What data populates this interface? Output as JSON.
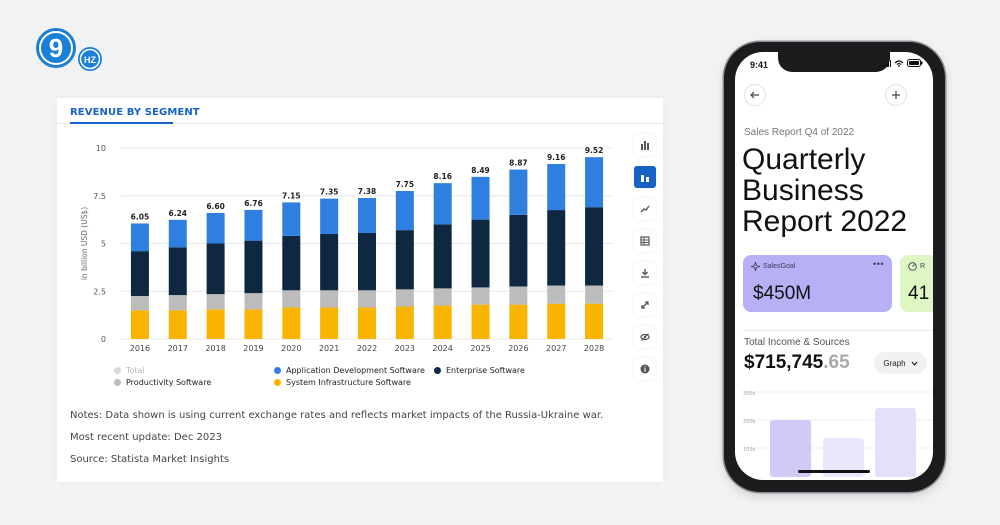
{
  "logo": {
    "numeral": "9",
    "suffix": "HZ"
  },
  "card": {
    "title": "REVENUE BY SEGMENT",
    "notes": [
      "Notes: Data shown is using current exchange rates and reflects market impacts of the Russia-Ukraine war.",
      "Most recent update: Dec 2023",
      "Source: Statista Market Insights"
    ]
  },
  "toolbar": {
    "items": [
      "bar-chart-icon",
      "stacked-bar-icon",
      "trend-line-icon",
      "table-icon",
      "download-icon",
      "fullscreen-icon",
      "hide-icon",
      "info-icon"
    ],
    "active": 1,
    "colors": {
      "active": "#1762c4"
    }
  },
  "chart_data": {
    "type": "bar",
    "stacked": true,
    "title": "",
    "xlabel": "",
    "ylabel": "in billion USD (US$)",
    "ylim": [
      0,
      10
    ],
    "yticks": [
      "0",
      "2.5",
      "5",
      "7.5",
      "10"
    ],
    "categories": [
      "2016",
      "2017",
      "2018",
      "2019",
      "2020",
      "2021",
      "2022",
      "2023",
      "2024",
      "2025",
      "2026",
      "2027",
      "2028"
    ],
    "totals": [
      "6.05",
      "6.24",
      "6.60",
      "6.76",
      "7.15",
      "7.35",
      "7.38",
      "7.75",
      "8.16",
      "8.49",
      "8.87",
      "9.16",
      "9.52"
    ],
    "series": [
      {
        "name": "System Infrastructure Software",
        "color": "#f9b400",
        "values": [
          1.5,
          1.5,
          1.55,
          1.55,
          1.65,
          1.65,
          1.65,
          1.7,
          1.75,
          1.8,
          1.8,
          1.85,
          1.85
        ]
      },
      {
        "name": "Productivity Software",
        "color": "#bcbcbc",
        "values": [
          0.75,
          0.8,
          0.8,
          0.85,
          0.9,
          0.9,
          0.9,
          0.9,
          0.9,
          0.9,
          0.95,
          0.95,
          0.95
        ]
      },
      {
        "name": "Enterprise Software",
        "color": "#0e2841",
        "values": [
          2.35,
          2.5,
          2.65,
          2.75,
          2.85,
          2.95,
          3.0,
          3.1,
          3.35,
          3.55,
          3.75,
          3.95,
          4.1
        ]
      },
      {
        "name": "Application Development Software",
        "color": "#2f7fe0",
        "values": [
          1.45,
          1.44,
          1.6,
          1.61,
          1.75,
          1.85,
          1.83,
          2.05,
          2.16,
          2.24,
          2.37,
          2.41,
          2.62
        ]
      }
    ],
    "legend": [
      {
        "name": "Total",
        "color": "#d8dadd",
        "muted": true
      },
      {
        "name": "Application Development Software",
        "color": "#2f7fe0",
        "muted": false
      },
      {
        "name": "Enterprise Software",
        "color": "#0e2841",
        "muted": false
      },
      {
        "name": "Productivity Software",
        "color": "#bcbcbc",
        "muted": false
      },
      {
        "name": "System Infrastructure Software",
        "color": "#f9b400",
        "muted": false
      }
    ],
    "legend_position": "bottom-left",
    "grid": true
  },
  "phone": {
    "time": "9:41",
    "subtitle": "Sales Report Q4 of 2022",
    "title_lines": [
      "Quarterly",
      "Business",
      "Report 2022"
    ],
    "goal_label": "SalesGoal",
    "goal_value": "$450M",
    "goal2_label": "R",
    "goal2_value": "41",
    "income_label": "Total Income & Sources",
    "income_main": "$715,745",
    "income_dec": ".65",
    "graph_label": "Graph",
    "mini_ticks": [
      "300k",
      "200k",
      "100k"
    ],
    "mini_values": [
      190,
      130,
      230
    ],
    "colors": {
      "goal": "#b7b0f6",
      "goal2": "#ddf6c4",
      "bar": "#cfcaf6"
    }
  }
}
